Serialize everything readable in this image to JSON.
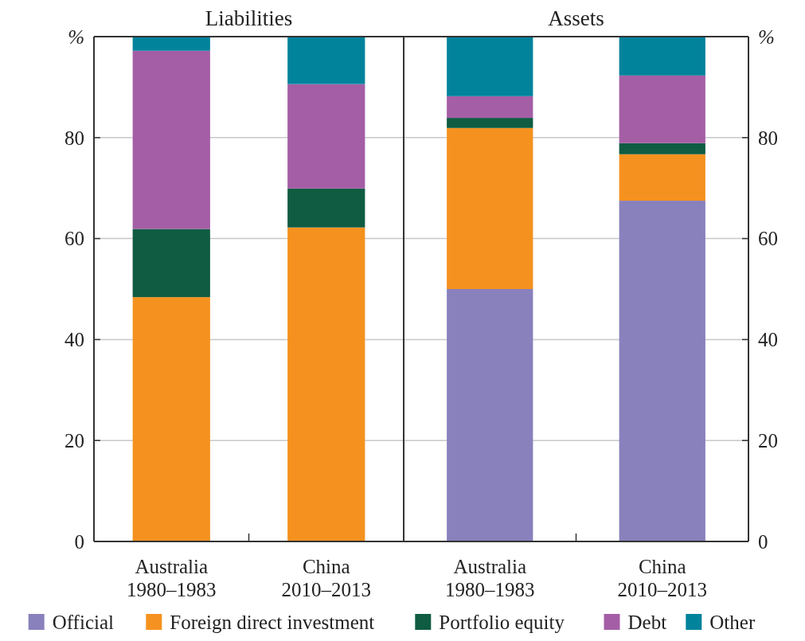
{
  "chart_data": [
    {
      "type": "bar",
      "title": "Liabilities",
      "ylabel": "%",
      "stacked": true,
      "categories": [
        "Australia\n1980–1983",
        "China\n2010–2013"
      ],
      "ylim": [
        0,
        100
      ],
      "yticks": [
        0,
        20,
        40,
        60,
        80
      ],
      "grid": "y",
      "series": [
        {
          "color": "#f5921f",
          "values": [
            48.4,
            62.2
          ]
        },
        {
          "color": "#0f5c42",
          "values": [
            13.5,
            7.7
          ]
        },
        {
          "color": "#a45ea5",
          "values": [
            35.3,
            20.7
          ]
        },
        {
          "color": "#02839c",
          "values": [
            2.8,
            9.4
          ]
        }
      ]
    },
    {
      "type": "bar",
      "title": "Assets",
      "ylabel": "%",
      "stacked": true,
      "categories": [
        "Australia\n1980–1983",
        "China\n2010–2013"
      ],
      "ylim": [
        0,
        100
      ],
      "yticks": [
        0,
        20,
        40,
        60,
        80
      ],
      "grid": "y",
      "legend": "bottom",
      "series": [
        {
          "name": "Official",
          "color": "#8881bc",
          "values": [
            50.0,
            67.5
          ]
        },
        {
          "name": "Foreign direct investment",
          "color": "#f5921f",
          "values": [
            31.9,
            9.2
          ]
        },
        {
          "name": "Portfolio equity",
          "color": "#0f5c42",
          "values": [
            2.0,
            2.2
          ]
        },
        {
          "name": "Debt",
          "color": "#a45ea5",
          "values": [
            4.3,
            13.4
          ]
        },
        {
          "name": "Other",
          "color": "#02839c",
          "values": [
            11.8,
            7.7
          ]
        }
      ]
    }
  ]
}
